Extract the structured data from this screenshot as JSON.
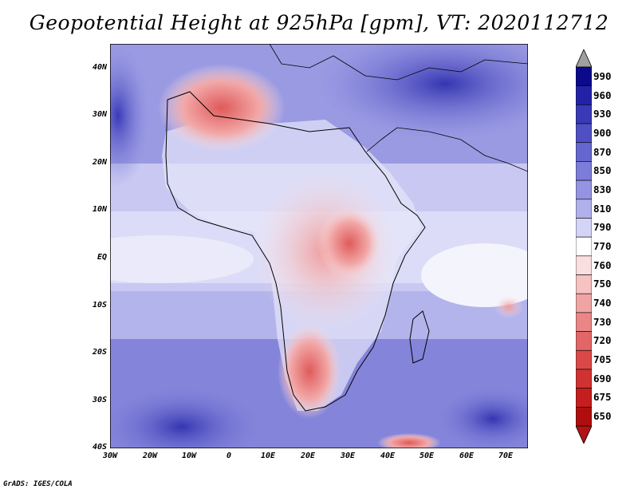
{
  "title": "Geopotential Height at 925hPa [gpm], VT: 2020112712",
  "lat_labels": [
    "40N",
    "30N",
    "20N",
    "10N",
    "EQ",
    "10S",
    "20S",
    "30S",
    "40S"
  ],
  "lon_labels": [
    "30W",
    "20W",
    "10W",
    "0",
    "10E",
    "20E",
    "30E",
    "40E",
    "50E",
    "60E",
    "70E"
  ],
  "colorbar": {
    "levels": [
      "990",
      "960",
      "930",
      "900",
      "870",
      "850",
      "830",
      "810",
      "790",
      "770",
      "760",
      "750",
      "740",
      "730",
      "720",
      "705",
      "690",
      "675",
      "650"
    ],
    "colors": [
      "#0a0a8a",
      "#2222a8",
      "#3a3ab8",
      "#5050c4",
      "#6666d0",
      "#7c7cda",
      "#9494e2",
      "#b0b0ec",
      "#d4d4f6",
      "#ffffff",
      "#fbdede",
      "#f6c2c2",
      "#f0a4a4",
      "#ea8686",
      "#e26666",
      "#da4848",
      "#d03232",
      "#c41e1e",
      "#b00e0e"
    ],
    "upper_arrow_color": "#a0a0a0",
    "lower_arrow_color": "#b01414"
  },
  "credit": "GrADS: IGES/COLA"
}
